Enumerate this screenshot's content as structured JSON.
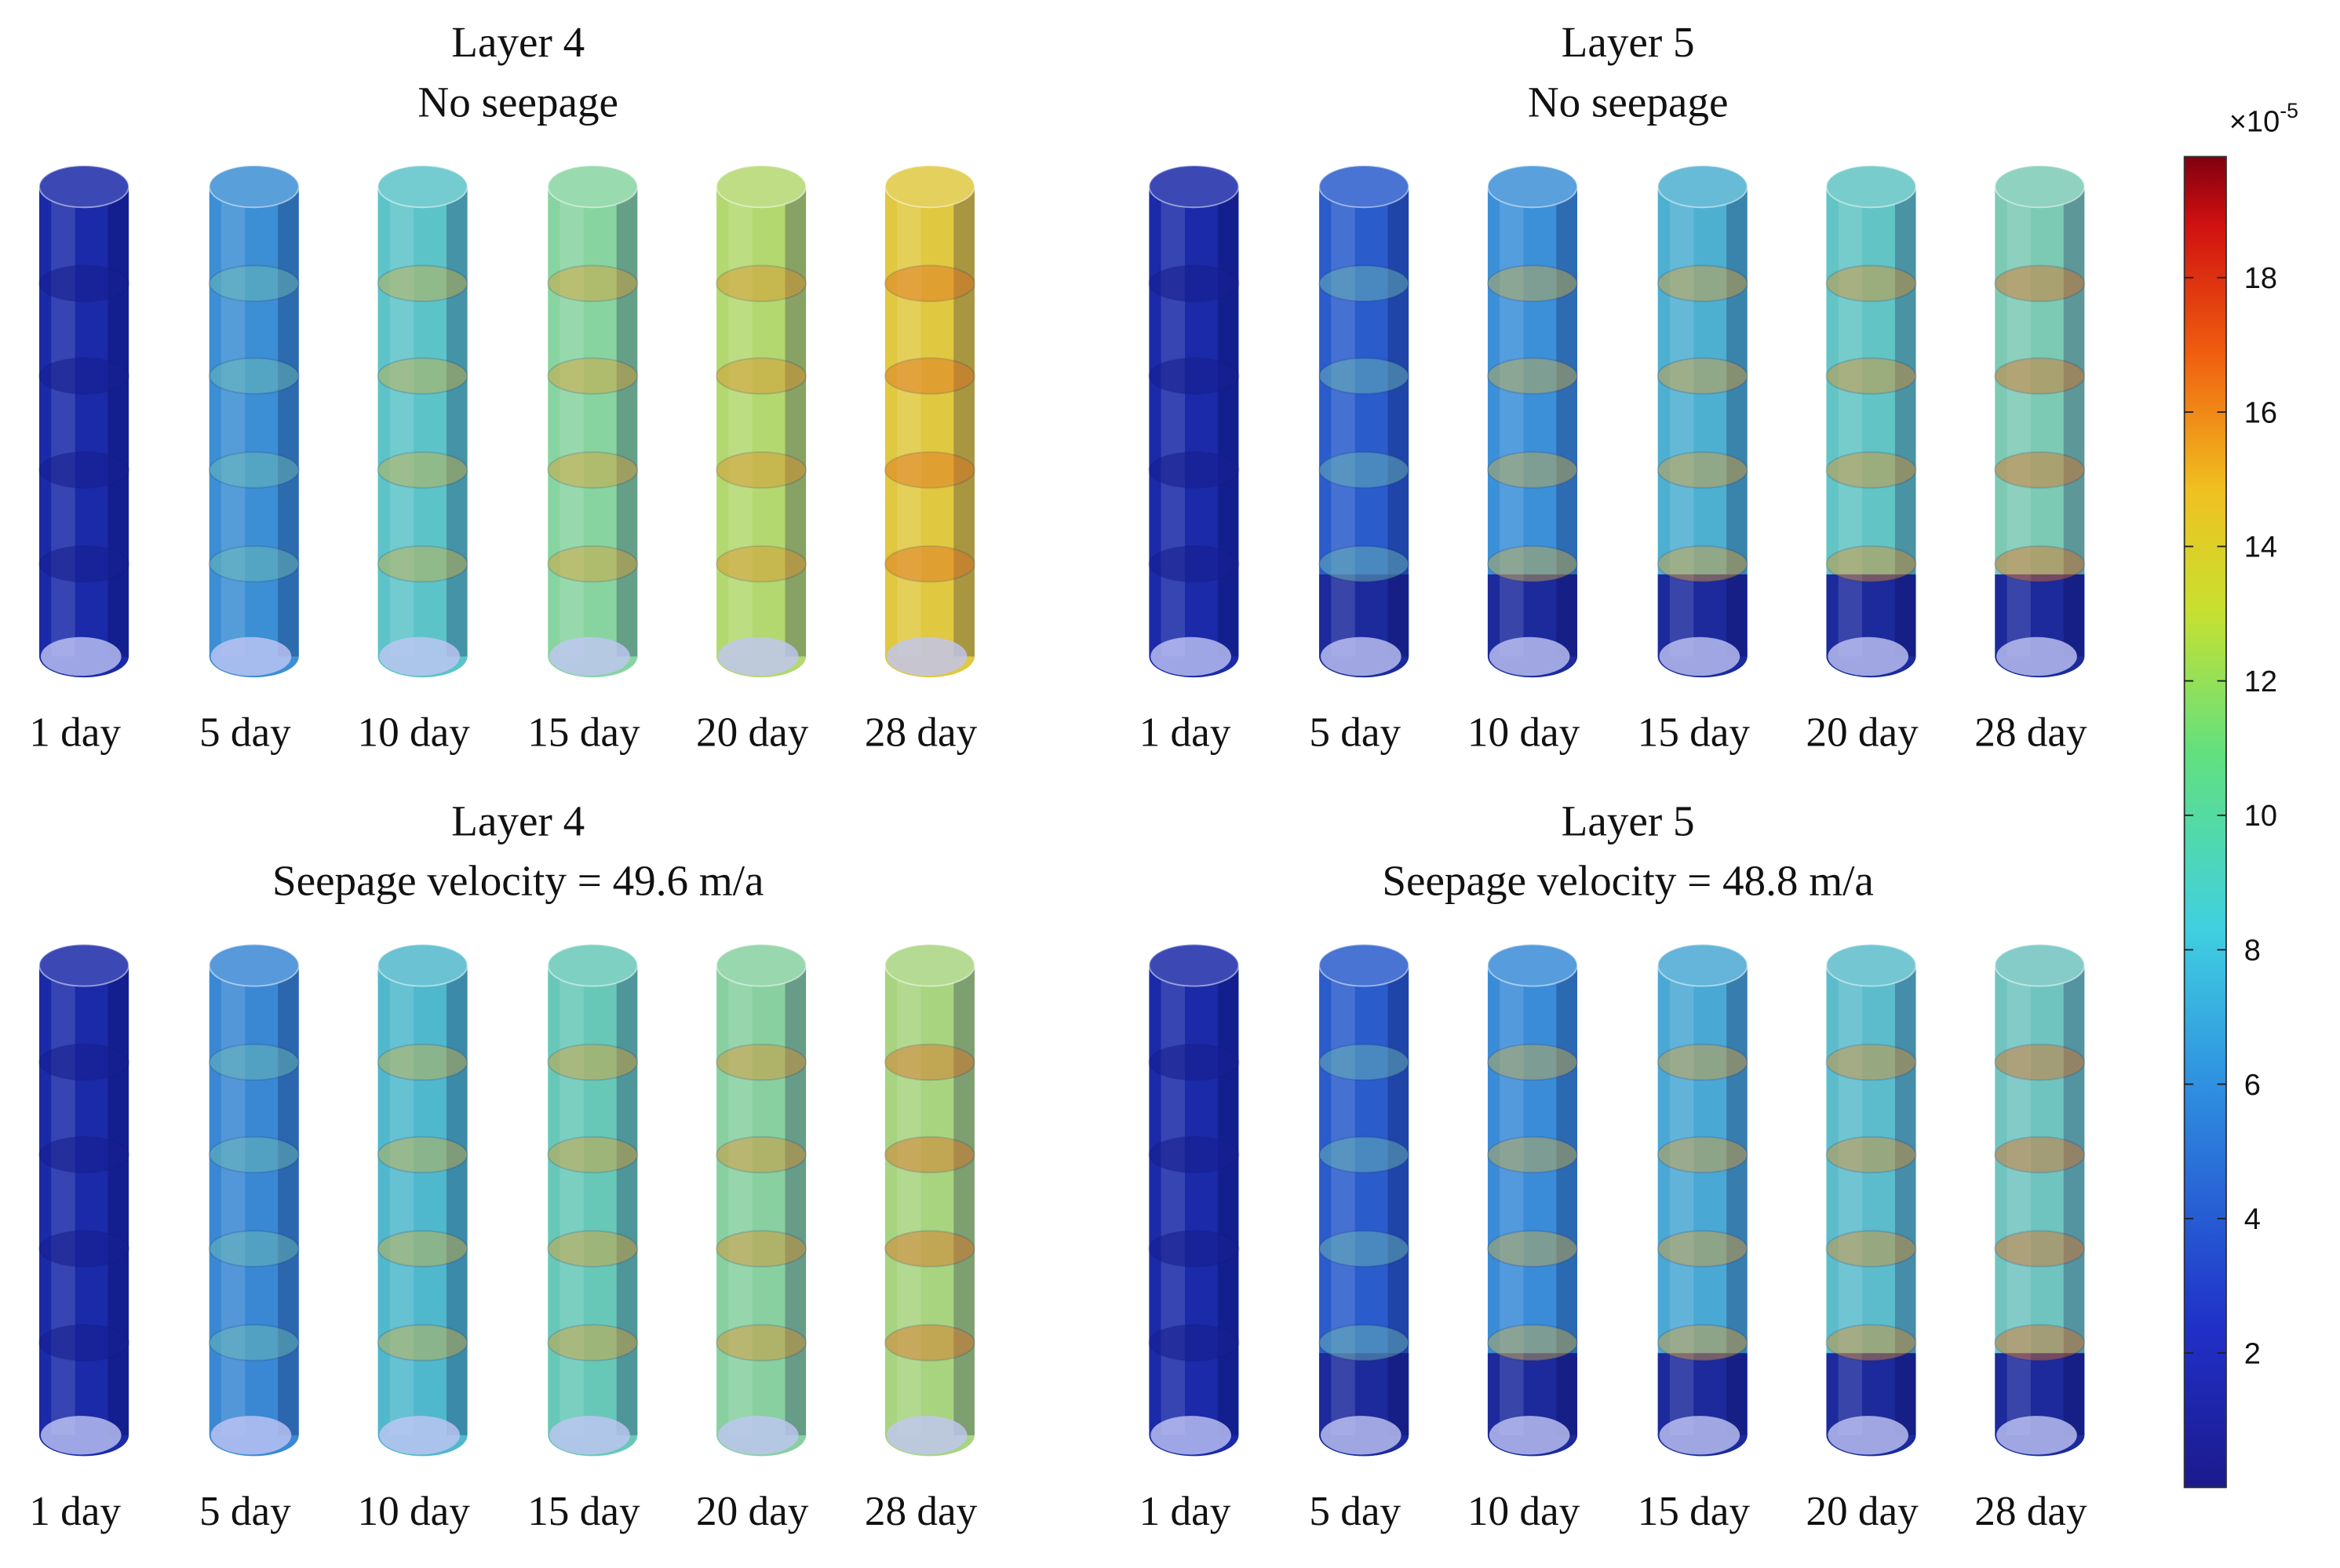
{
  "panels": [
    {
      "title": "Layer 4",
      "subtitle": "No seepage",
      "labels": [
        "1 day",
        "5 day",
        "10 day",
        "15 day",
        "20 day",
        "28 day"
      ]
    },
    {
      "title": "Layer 5",
      "subtitle": "No seepage",
      "labels": [
        "1 day",
        "5 day",
        "10 day",
        "15 day",
        "20 day",
        "28 day"
      ]
    },
    {
      "title": "Layer 4",
      "subtitle": "Seepage velocity = 49.6 m/a",
      "labels": [
        "1 day",
        "5 day",
        "10 day",
        "15 day",
        "20 day",
        "28 day"
      ]
    },
    {
      "title": "Layer 5",
      "subtitle": "Seepage velocity = 48.8 m/a",
      "labels": [
        "1 day",
        "5 day",
        "10 day",
        "15 day",
        "20 day",
        "28 day"
      ]
    }
  ],
  "colorbar": {
    "multiplier": "×10",
    "exponent": "-5",
    "range": [
      0,
      19.8
    ],
    "ticks": [
      2,
      4,
      6,
      8,
      10,
      12,
      14,
      16,
      18
    ]
  }
}
